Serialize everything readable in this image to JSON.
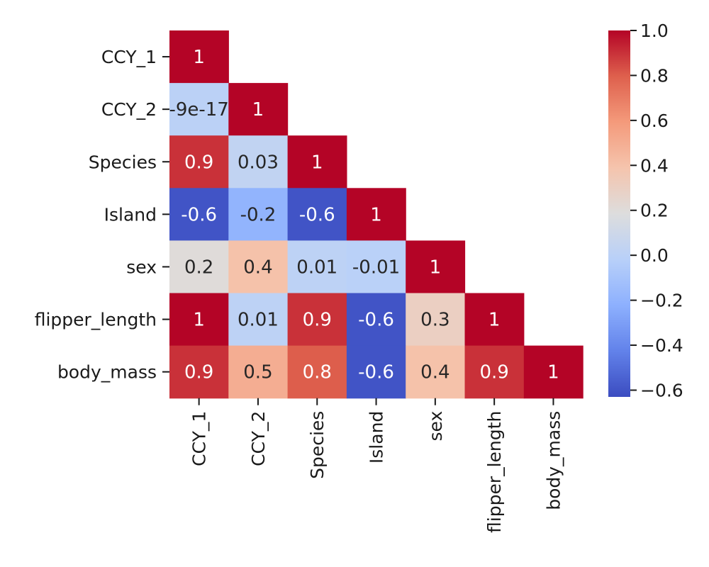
{
  "chart_data": {
    "type": "heatmap",
    "variables": [
      "CCY_1",
      "CCY_2",
      "Species",
      "Island",
      "sex",
      "flipper_length",
      "body_mass"
    ],
    "values": [
      [
        1,
        null,
        null,
        null,
        null,
        null,
        null
      ],
      [
        -9e-17,
        1,
        null,
        null,
        null,
        null,
        null
      ],
      [
        0.9,
        0.03,
        1,
        null,
        null,
        null,
        null
      ],
      [
        -0.6,
        -0.2,
        -0.6,
        1,
        null,
        null,
        null
      ],
      [
        0.2,
        0.4,
        0.01,
        -0.01,
        1,
        null,
        null
      ],
      [
        1,
        0.01,
        0.9,
        -0.6,
        0.3,
        1,
        null
      ],
      [
        0.9,
        0.5,
        0.8,
        -0.6,
        0.4,
        0.9,
        1
      ]
    ],
    "annotations": [
      [
        "1",
        null,
        null,
        null,
        null,
        null,
        null
      ],
      [
        "-9e-17",
        "1",
        null,
        null,
        null,
        null,
        null
      ],
      [
        "0.9",
        "0.03",
        "1",
        null,
        null,
        null,
        null
      ],
      [
        "-0.6",
        "-0.2",
        "-0.6",
        "1",
        null,
        null,
        null
      ],
      [
        "0.2",
        "0.4",
        "0.01",
        "-0.01",
        "1",
        null,
        null
      ],
      [
        "1",
        "0.01",
        "0.9",
        "-0.6",
        "0.3",
        "1",
        null
      ],
      [
        "0.9",
        "0.5",
        "0.8",
        "-0.6",
        "0.4",
        "0.9",
        "1"
      ]
    ],
    "mask": "upper-triangle",
    "colormap": "coolwarm",
    "color_range": [
      -0.63,
      1.0
    ],
    "colorbar": {
      "placement": "right",
      "ticks": [
        1.0,
        0.8,
        0.6,
        0.4,
        0.2,
        0.0,
        -0.2,
        -0.4,
        -0.6
      ],
      "tick_labels": [
        "1.0",
        "0.8",
        "0.6",
        "0.4",
        "0.2",
        "0.0",
        "−0.2",
        "−0.4",
        "−0.6"
      ]
    },
    "title": "",
    "xlabel": "",
    "ylabel": ""
  }
}
